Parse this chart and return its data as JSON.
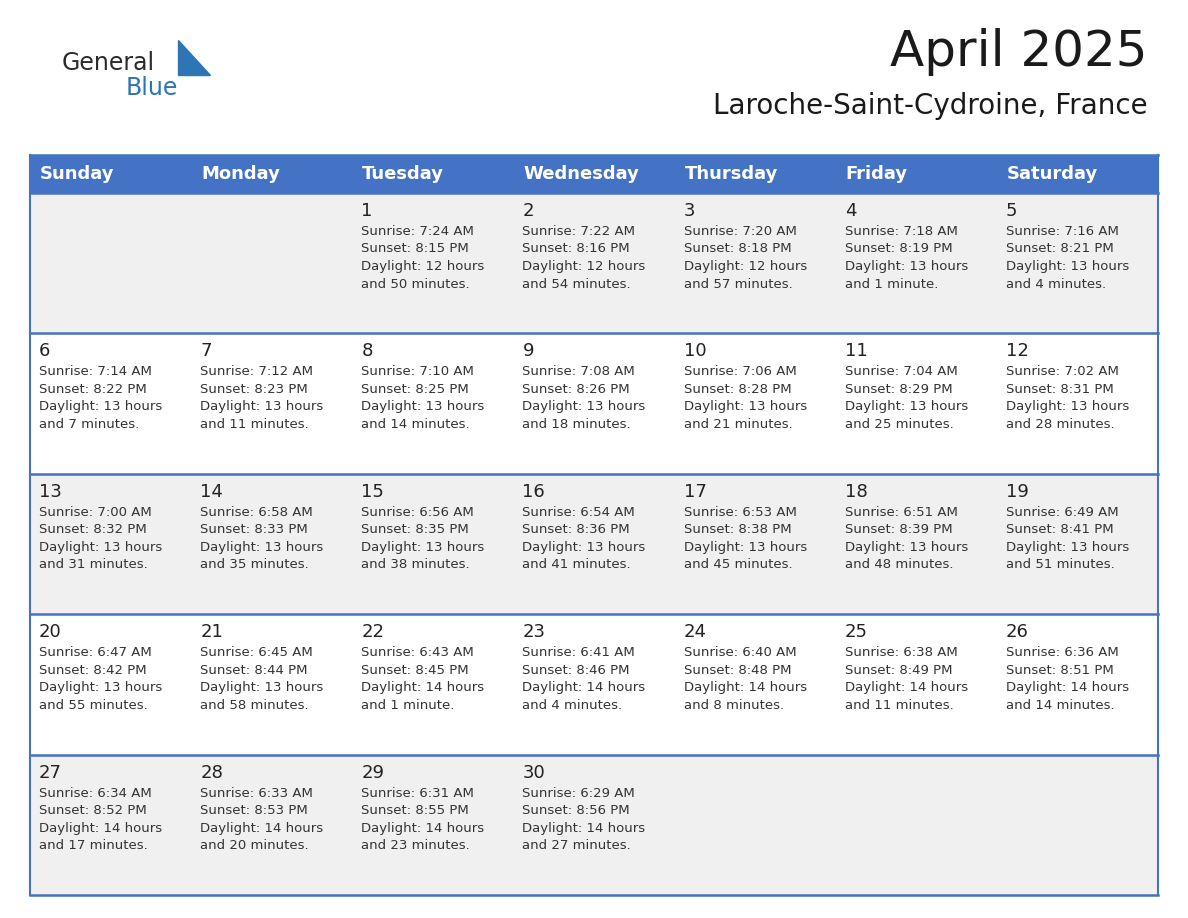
{
  "title": "April 2025",
  "subtitle": "Laroche-Saint-Cydroine, France",
  "header_bg": "#4472C4",
  "header_text": "#FFFFFF",
  "row_bg_odd": "#F0F0F0",
  "row_bg_even": "#FFFFFF",
  "border_color": "#4472C4",
  "day_headers": [
    "Sunday",
    "Monday",
    "Tuesday",
    "Wednesday",
    "Thursday",
    "Friday",
    "Saturday"
  ],
  "weeks": [
    [
      {
        "day": "",
        "info": ""
      },
      {
        "day": "",
        "info": ""
      },
      {
        "day": "1",
        "info": "Sunrise: 7:24 AM\nSunset: 8:15 PM\nDaylight: 12 hours\nand 50 minutes."
      },
      {
        "day": "2",
        "info": "Sunrise: 7:22 AM\nSunset: 8:16 PM\nDaylight: 12 hours\nand 54 minutes."
      },
      {
        "day": "3",
        "info": "Sunrise: 7:20 AM\nSunset: 8:18 PM\nDaylight: 12 hours\nand 57 minutes."
      },
      {
        "day": "4",
        "info": "Sunrise: 7:18 AM\nSunset: 8:19 PM\nDaylight: 13 hours\nand 1 minute."
      },
      {
        "day": "5",
        "info": "Sunrise: 7:16 AM\nSunset: 8:21 PM\nDaylight: 13 hours\nand 4 minutes."
      }
    ],
    [
      {
        "day": "6",
        "info": "Sunrise: 7:14 AM\nSunset: 8:22 PM\nDaylight: 13 hours\nand 7 minutes."
      },
      {
        "day": "7",
        "info": "Sunrise: 7:12 AM\nSunset: 8:23 PM\nDaylight: 13 hours\nand 11 minutes."
      },
      {
        "day": "8",
        "info": "Sunrise: 7:10 AM\nSunset: 8:25 PM\nDaylight: 13 hours\nand 14 minutes."
      },
      {
        "day": "9",
        "info": "Sunrise: 7:08 AM\nSunset: 8:26 PM\nDaylight: 13 hours\nand 18 minutes."
      },
      {
        "day": "10",
        "info": "Sunrise: 7:06 AM\nSunset: 8:28 PM\nDaylight: 13 hours\nand 21 minutes."
      },
      {
        "day": "11",
        "info": "Sunrise: 7:04 AM\nSunset: 8:29 PM\nDaylight: 13 hours\nand 25 minutes."
      },
      {
        "day": "12",
        "info": "Sunrise: 7:02 AM\nSunset: 8:31 PM\nDaylight: 13 hours\nand 28 minutes."
      }
    ],
    [
      {
        "day": "13",
        "info": "Sunrise: 7:00 AM\nSunset: 8:32 PM\nDaylight: 13 hours\nand 31 minutes."
      },
      {
        "day": "14",
        "info": "Sunrise: 6:58 AM\nSunset: 8:33 PM\nDaylight: 13 hours\nand 35 minutes."
      },
      {
        "day": "15",
        "info": "Sunrise: 6:56 AM\nSunset: 8:35 PM\nDaylight: 13 hours\nand 38 minutes."
      },
      {
        "day": "16",
        "info": "Sunrise: 6:54 AM\nSunset: 8:36 PM\nDaylight: 13 hours\nand 41 minutes."
      },
      {
        "day": "17",
        "info": "Sunrise: 6:53 AM\nSunset: 8:38 PM\nDaylight: 13 hours\nand 45 minutes."
      },
      {
        "day": "18",
        "info": "Sunrise: 6:51 AM\nSunset: 8:39 PM\nDaylight: 13 hours\nand 48 minutes."
      },
      {
        "day": "19",
        "info": "Sunrise: 6:49 AM\nSunset: 8:41 PM\nDaylight: 13 hours\nand 51 minutes."
      }
    ],
    [
      {
        "day": "20",
        "info": "Sunrise: 6:47 AM\nSunset: 8:42 PM\nDaylight: 13 hours\nand 55 minutes."
      },
      {
        "day": "21",
        "info": "Sunrise: 6:45 AM\nSunset: 8:44 PM\nDaylight: 13 hours\nand 58 minutes."
      },
      {
        "day": "22",
        "info": "Sunrise: 6:43 AM\nSunset: 8:45 PM\nDaylight: 14 hours\nand 1 minute."
      },
      {
        "day": "23",
        "info": "Sunrise: 6:41 AM\nSunset: 8:46 PM\nDaylight: 14 hours\nand 4 minutes."
      },
      {
        "day": "24",
        "info": "Sunrise: 6:40 AM\nSunset: 8:48 PM\nDaylight: 14 hours\nand 8 minutes."
      },
      {
        "day": "25",
        "info": "Sunrise: 6:38 AM\nSunset: 8:49 PM\nDaylight: 14 hours\nand 11 minutes."
      },
      {
        "day": "26",
        "info": "Sunrise: 6:36 AM\nSunset: 8:51 PM\nDaylight: 14 hours\nand 14 minutes."
      }
    ],
    [
      {
        "day": "27",
        "info": "Sunrise: 6:34 AM\nSunset: 8:52 PM\nDaylight: 14 hours\nand 17 minutes."
      },
      {
        "day": "28",
        "info": "Sunrise: 6:33 AM\nSunset: 8:53 PM\nDaylight: 14 hours\nand 20 minutes."
      },
      {
        "day": "29",
        "info": "Sunrise: 6:31 AM\nSunset: 8:55 PM\nDaylight: 14 hours\nand 23 minutes."
      },
      {
        "day": "30",
        "info": "Sunrise: 6:29 AM\nSunset: 8:56 PM\nDaylight: 14 hours\nand 27 minutes."
      },
      {
        "day": "",
        "info": ""
      },
      {
        "day": "",
        "info": ""
      },
      {
        "day": "",
        "info": ""
      }
    ]
  ],
  "logo_general_color": "#2B2B2B",
  "logo_blue_color": "#2E75B6",
  "title_fontsize": 36,
  "subtitle_fontsize": 20,
  "header_fontsize": 13,
  "day_num_fontsize": 13,
  "info_fontsize": 9.5
}
